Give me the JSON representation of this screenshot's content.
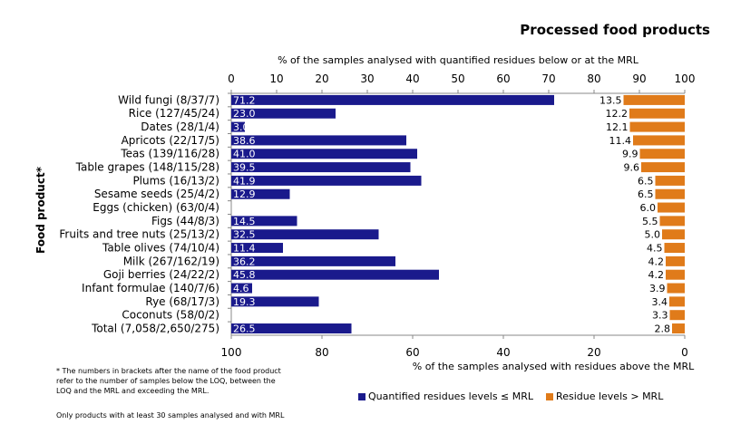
{
  "chart_data": {
    "type": "bar",
    "title": "Processed food products",
    "top_axis_label": "% of the samples analysed with quantified residues below or at the MRL",
    "bottom_axis_label": "% of the samples analysed with residues above the MRL",
    "ylabel": "Food product*",
    "top_axis_ticks": [
      "0",
      "10",
      "20",
      "30",
      "40",
      "50",
      "60",
      "70",
      "80",
      "90",
      "100"
    ],
    "bottom_axis_ticks": [
      "100",
      "80",
      "60",
      "40",
      "20",
      "0"
    ],
    "top_xlim": [
      0,
      100
    ],
    "bottom_xlim": [
      100,
      0
    ],
    "categories": [
      "Wild fungi (8/37/7)",
      "Rice (127/45/24)",
      "Dates (28/1/4)",
      "Apricots (22/17/5)",
      "Teas (139/116/28)",
      "Table grapes (148/115/28)",
      "Plums (16/13/2)",
      "Sesame seeds (25/4/2)",
      "Eggs (chicken) (63/0/4)",
      "Figs (44/8/3)",
      "Fruits and tree nuts (25/13/2)",
      "Table olives (74/10/4)",
      "Milk (267/162/19)",
      "Goji berries (24/22/2)",
      "Infant formulae (140/7/6)",
      "Rye (68/17/3)",
      "Coconuts (58/0/2)",
      "Total (7,058/2,650/275)"
    ],
    "series": [
      {
        "name": "Quantified residues levels ≤ MRL",
        "color": "#1a1a8c",
        "values": [
          71.2,
          23.0,
          3.0,
          38.6,
          41.0,
          39.5,
          41.9,
          12.9,
          null,
          14.5,
          32.5,
          11.4,
          36.2,
          45.8,
          4.6,
          19.3,
          null,
          26.5
        ],
        "labels": [
          "71.2",
          "23.0",
          "3.0",
          "38.6",
          "41.0",
          "39.5",
          "41.9",
          "12.9",
          "",
          "14.5",
          "32.5",
          "11.4",
          "36.2",
          "45.8",
          "4.6",
          "19.3",
          "",
          "26.5"
        ]
      },
      {
        "name": "Residue levels > MRL",
        "color": "#e07b1a",
        "values": [
          13.5,
          12.2,
          12.1,
          11.4,
          9.9,
          9.6,
          6.5,
          6.5,
          6.0,
          5.5,
          5.0,
          4.5,
          4.2,
          4.2,
          3.9,
          3.4,
          3.3,
          2.8
        ],
        "labels": [
          "13.5",
          "12.2",
          "12.1",
          "11.4",
          "9.9",
          "9.6",
          "6.5",
          "6.5",
          "6.0",
          "5.5",
          "5.0",
          "4.5",
          "4.2",
          "4.2",
          "3.9",
          "3.4",
          "3.3",
          "2.8"
        ]
      }
    ],
    "legend_position": "bottom-right",
    "grid": false
  },
  "footnotes": {
    "line1": "* The numbers in brackets after the name of the food product",
    "line2": "refer to the number of samples below the LOQ, between the",
    "line3": "LOQ and the MRL and exceeding the MRL.",
    "line4": "Only products with at least 30 samples analysed and with MRL"
  }
}
